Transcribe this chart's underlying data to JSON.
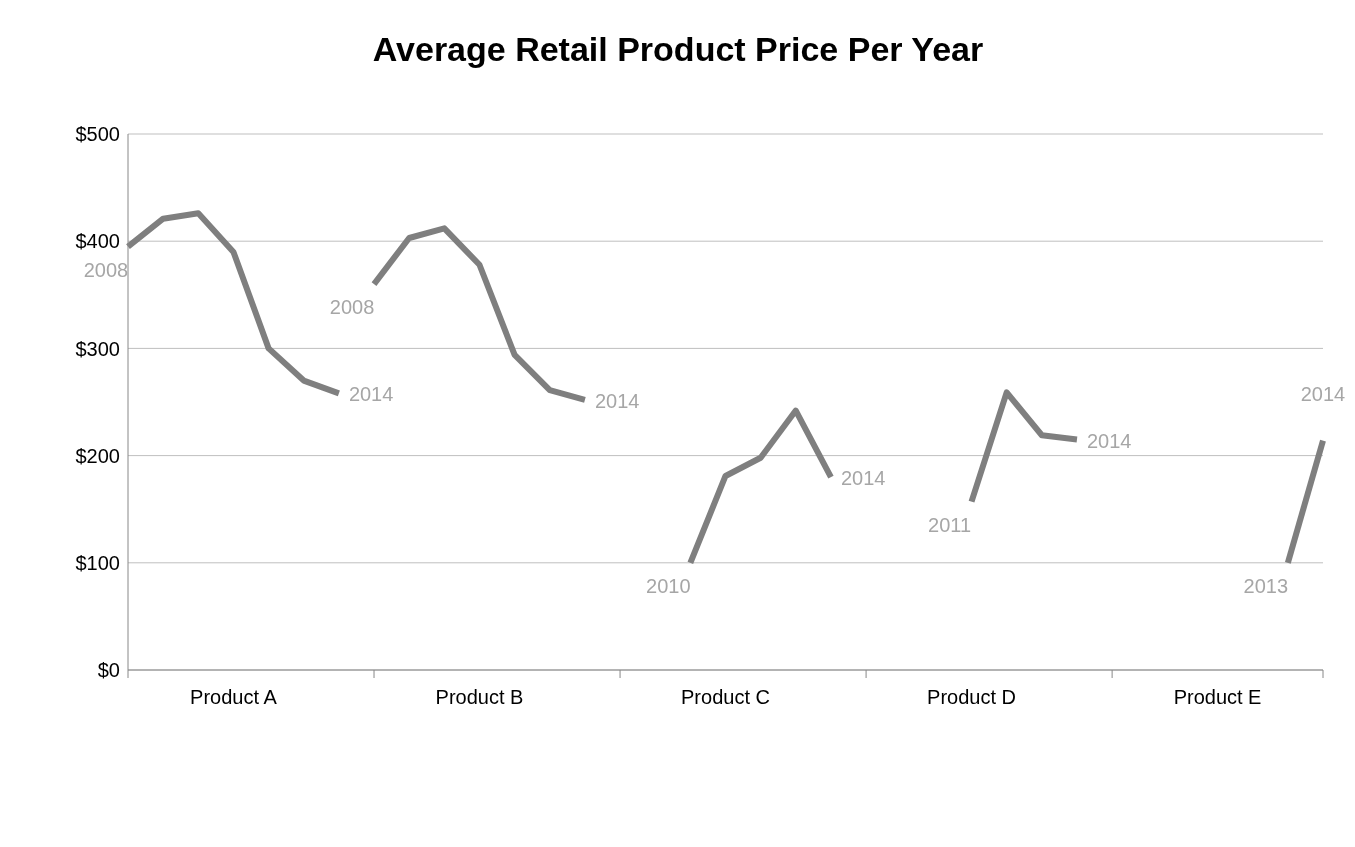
{
  "chart_data": {
    "type": "line",
    "title": "Average Retail Product Price Per Year",
    "categories": [
      null,
      null,
      null,
      "Product A",
      null,
      null,
      null,
      null,
      null,
      null,
      "Product B",
      null,
      null,
      null,
      null,
      null,
      null,
      "Product C",
      null,
      null,
      null,
      null,
      null,
      null,
      "Product D",
      null,
      null,
      null,
      null,
      null,
      null,
      "Product E",
      null,
      null,
      null
    ],
    "series": [
      {
        "color": "#7f7f7f",
        "values": [
          395,
          421,
          426,
          390,
          300,
          270,
          258,
          null,
          null,
          null,
          null,
          null,
          null,
          null,
          null,
          null,
          null,
          null,
          null,
          null,
          null,
          null,
          null,
          null,
          null,
          null,
          null,
          null,
          null,
          null,
          null,
          null,
          null,
          null,
          null
        ]
      },
      {
        "color": "#7f7f7f",
        "values": [
          null,
          null,
          null,
          null,
          null,
          null,
          null,
          360,
          403,
          412,
          378,
          294,
          261,
          252,
          null,
          null,
          null,
          null,
          null,
          null,
          null,
          null,
          null,
          null,
          null,
          null,
          null,
          null,
          null,
          null,
          null,
          null,
          null,
          null,
          null
        ]
      },
      {
        "color": "#7f7f7f",
        "values": [
          null,
          null,
          null,
          null,
          null,
          null,
          null,
          null,
          null,
          null,
          null,
          null,
          null,
          null,
          null,
          null,
          100,
          181,
          198,
          242,
          180,
          null,
          null,
          null,
          null,
          null,
          null,
          null,
          null,
          null,
          null,
          null,
          null,
          null,
          null
        ]
      },
      {
        "color": "#7f7f7f",
        "values": [
          null,
          null,
          null,
          null,
          null,
          null,
          null,
          null,
          null,
          null,
          null,
          null,
          null,
          null,
          null,
          null,
          null,
          null,
          null,
          null,
          null,
          null,
          null,
          null,
          157,
          259,
          219,
          215,
          null,
          null,
          null,
          null,
          null,
          null,
          null
        ]
      },
      {
        "color": "#7f7f7f",
        "values": [
          null,
          null,
          null,
          null,
          null,
          null,
          null,
          null,
          null,
          null,
          null,
          null,
          null,
          null,
          null,
          null,
          null,
          null,
          null,
          null,
          null,
          null,
          null,
          null,
          null,
          null,
          null,
          null,
          null,
          null,
          null,
          null,
          null,
          100,
          214
        ]
      }
    ],
    "annotations": [
      "2008",
      "2014",
      "2008",
      "2014",
      "2010",
      "2014",
      "2011",
      "2014",
      "2013",
      "2014"
    ],
    "ylim": [
      0,
      500
    ],
    "yticks": [
      {
        "value": 0,
        "label": "$0"
      },
      {
        "value": 100,
        "label": "$100"
      },
      {
        "value": 200,
        "label": "$200"
      },
      {
        "value": 300,
        "label": "$300"
      },
      {
        "value": 400,
        "label": "$400"
      },
      {
        "value": 500,
        "label": "$500"
      }
    ],
    "grid": "y",
    "marker": "none",
    "line_style": "solid"
  }
}
